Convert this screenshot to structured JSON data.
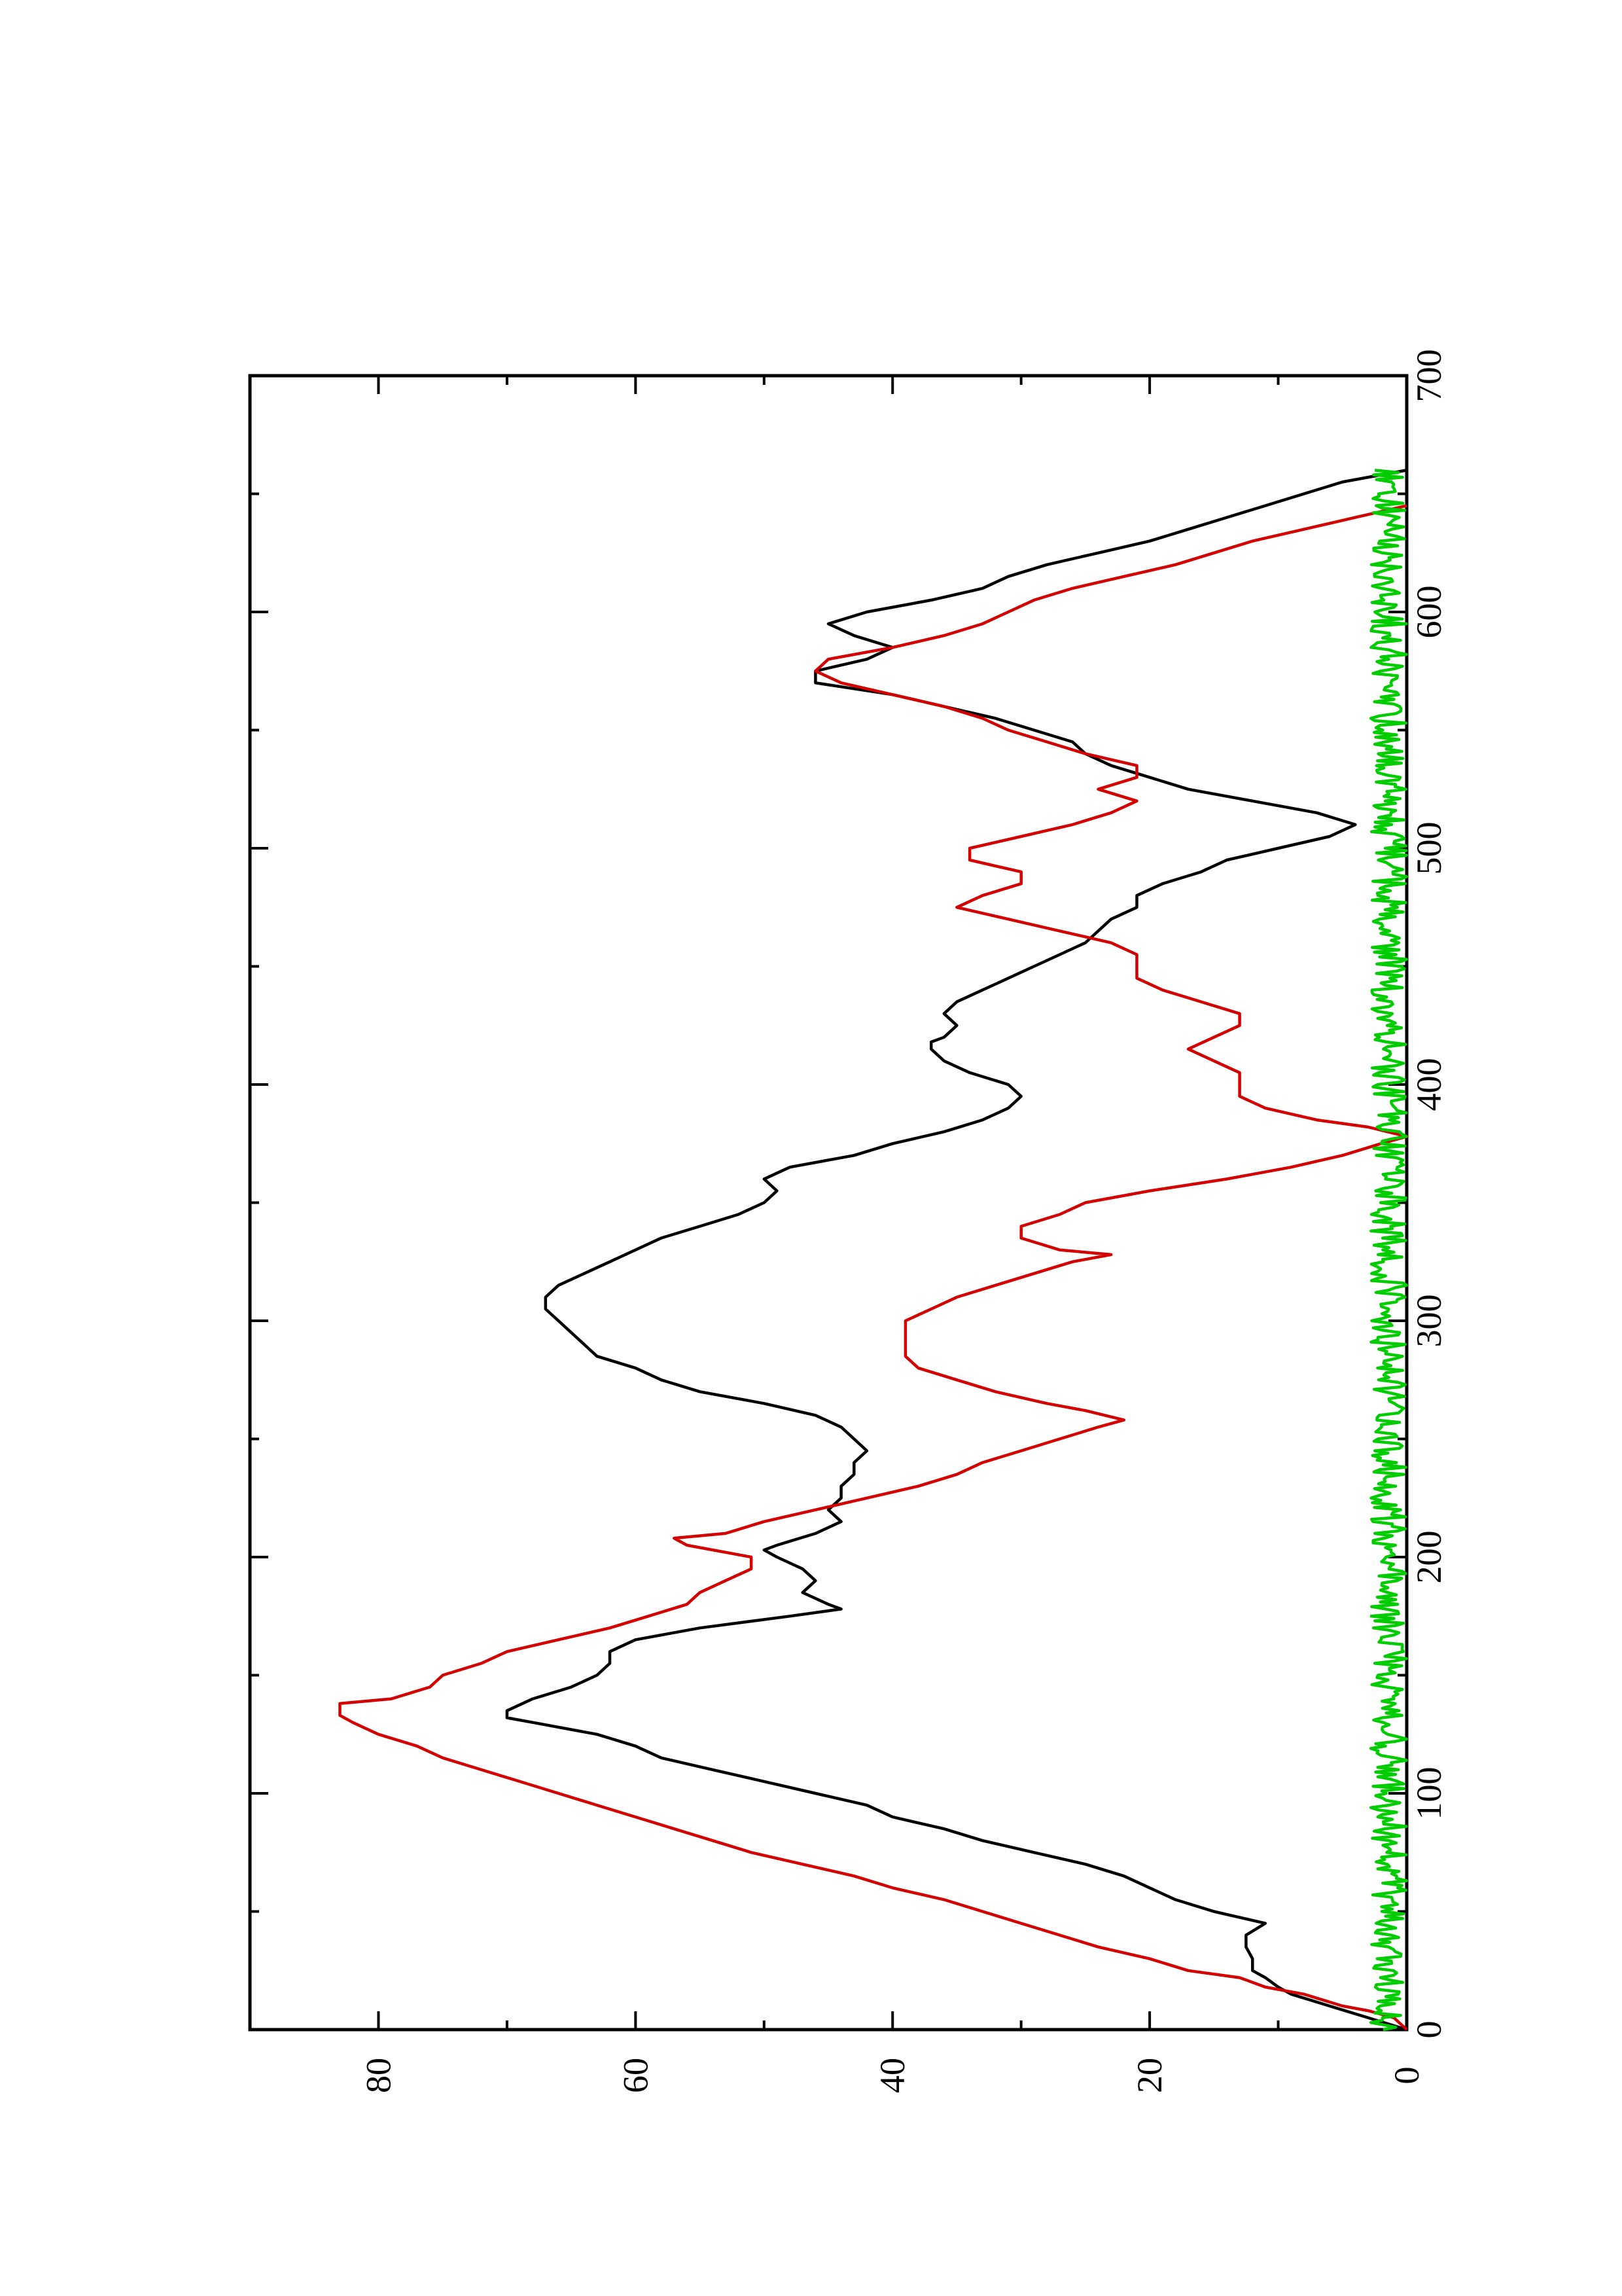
{
  "chart_data": {
    "type": "line",
    "title": "",
    "xlabel": "",
    "ylabel": "",
    "rotated": "90deg-counterclockwise (page is landscape plot printed on portrait page)",
    "xlim": [
      0,
      700
    ],
    "ylim": [
      0,
      90
    ],
    "x_ticks": [
      "0",
      "100",
      "200",
      "300",
      "400",
      "500",
      "600",
      "700"
    ],
    "y_ticks": [
      "0",
      "20",
      "40",
      "60",
      "80"
    ],
    "x_minor_step": 50,
    "y_minor_step": 10,
    "grid": false,
    "series": [
      {
        "color": "#000000",
        "points": [
          [
            0,
            0
          ],
          [
            5,
            3
          ],
          [
            10,
            6
          ],
          [
            15,
            9
          ],
          [
            18,
            10
          ],
          [
            22,
            11
          ],
          [
            25,
            12
          ],
          [
            30,
            12
          ],
          [
            35,
            12.5
          ],
          [
            40,
            12.5
          ],
          [
            45,
            11
          ],
          [
            50,
            15
          ],
          [
            55,
            18
          ],
          [
            60,
            20
          ],
          [
            65,
            22
          ],
          [
            70,
            25
          ],
          [
            75,
            29
          ],
          [
            80,
            33
          ],
          [
            85,
            36
          ],
          [
            90,
            40
          ],
          [
            95,
            42
          ],
          [
            100,
            46
          ],
          [
            105,
            50
          ],
          [
            110,
            54
          ],
          [
            115,
            58
          ],
          [
            120,
            60
          ],
          [
            125,
            63
          ],
          [
            130,
            68
          ],
          [
            132,
            70
          ],
          [
            135,
            70
          ],
          [
            140,
            68
          ],
          [
            145,
            65
          ],
          [
            150,
            63
          ],
          [
            155,
            62
          ],
          [
            160,
            62
          ],
          [
            165,
            60
          ],
          [
            170,
            55
          ],
          [
            175,
            48
          ],
          [
            178,
            44
          ],
          [
            180,
            45
          ],
          [
            185,
            47
          ],
          [
            190,
            46
          ],
          [
            195,
            47
          ],
          [
            200,
            49
          ],
          [
            203,
            50
          ],
          [
            205,
            49
          ],
          [
            210,
            46
          ],
          [
            215,
            44
          ],
          [
            220,
            45
          ],
          [
            225,
            44
          ],
          [
            230,
            44
          ],
          [
            235,
            43
          ],
          [
            240,
            43
          ],
          [
            245,
            42
          ],
          [
            250,
            43
          ],
          [
            255,
            44
          ],
          [
            260,
            46
          ],
          [
            265,
            50
          ],
          [
            270,
            55
          ],
          [
            275,
            58
          ],
          [
            280,
            60
          ],
          [
            285,
            63
          ],
          [
            290,
            64
          ],
          [
            295,
            65
          ],
          [
            300,
            66
          ],
          [
            305,
            67
          ],
          [
            310,
            67
          ],
          [
            315,
            66
          ],
          [
            320,
            64
          ],
          [
            325,
            62
          ],
          [
            330,
            60
          ],
          [
            335,
            58
          ],
          [
            340,
            55
          ],
          [
            345,
            52
          ],
          [
            350,
            50
          ],
          [
            355,
            49
          ],
          [
            360,
            50
          ],
          [
            365,
            48
          ],
          [
            370,
            43
          ],
          [
            375,
            40
          ],
          [
            380,
            36
          ],
          [
            385,
            33
          ],
          [
            390,
            31
          ],
          [
            395,
            30
          ],
          [
            400,
            31
          ],
          [
            405,
            34
          ],
          [
            410,
            36
          ],
          [
            415,
            37
          ],
          [
            418,
            37
          ],
          [
            420,
            36
          ],
          [
            425,
            35
          ],
          [
            430,
            36
          ],
          [
            435,
            35
          ],
          [
            440,
            33
          ],
          [
            445,
            31
          ],
          [
            450,
            29
          ],
          [
            455,
            27
          ],
          [
            460,
            25
          ],
          [
            465,
            24
          ],
          [
            470,
            23
          ],
          [
            475,
            21
          ],
          [
            480,
            21
          ],
          [
            485,
            19
          ],
          [
            490,
            16
          ],
          [
            495,
            14
          ],
          [
            500,
            10
          ],
          [
            505,
            6
          ],
          [
            510,
            4
          ],
          [
            515,
            7
          ],
          [
            520,
            12
          ],
          [
            525,
            17
          ],
          [
            530,
            20
          ],
          [
            535,
            23
          ],
          [
            540,
            25
          ],
          [
            545,
            26
          ],
          [
            550,
            29
          ],
          [
            555,
            32
          ],
          [
            560,
            36
          ],
          [
            565,
            40
          ],
          [
            570,
            46
          ],
          [
            575,
            46
          ],
          [
            580,
            42
          ],
          [
            585,
            40
          ],
          [
            590,
            43
          ],
          [
            595,
            45
          ],
          [
            600,
            42
          ],
          [
            605,
            37
          ],
          [
            610,
            33
          ],
          [
            615,
            31
          ],
          [
            620,
            28
          ],
          [
            625,
            24
          ],
          [
            630,
            20
          ],
          [
            635,
            17
          ],
          [
            640,
            14
          ],
          [
            645,
            11
          ],
          [
            650,
            8
          ],
          [
            655,
            5
          ],
          [
            660,
            0
          ]
        ]
      },
      {
        "color": "#d40000",
        "points": [
          [
            0,
            0
          ],
          [
            5,
            1
          ],
          [
            8,
            3
          ],
          [
            10,
            5
          ],
          [
            15,
            8
          ],
          [
            18,
            11
          ],
          [
            22,
            13
          ],
          [
            25,
            17
          ],
          [
            30,
            20
          ],
          [
            35,
            24
          ],
          [
            40,
            27
          ],
          [
            45,
            30
          ],
          [
            50,
            33
          ],
          [
            55,
            36
          ],
          [
            60,
            40
          ],
          [
            65,
            43
          ],
          [
            70,
            47
          ],
          [
            75,
            51
          ],
          [
            80,
            54
          ],
          [
            85,
            57
          ],
          [
            90,
            60
          ],
          [
            95,
            63
          ],
          [
            100,
            66
          ],
          [
            105,
            69
          ],
          [
            110,
            72
          ],
          [
            115,
            75
          ],
          [
            120,
            77
          ],
          [
            125,
            80
          ],
          [
            130,
            82
          ],
          [
            133,
            83
          ],
          [
            138,
            83
          ],
          [
            140,
            79
          ],
          [
            145,
            76
          ],
          [
            150,
            75
          ],
          [
            155,
            72
          ],
          [
            160,
            70
          ],
          [
            165,
            66
          ],
          [
            170,
            62
          ],
          [
            175,
            59
          ],
          [
            180,
            56
          ],
          [
            185,
            55
          ],
          [
            190,
            53
          ],
          [
            195,
            51
          ],
          [
            200,
            51
          ],
          [
            205,
            56
          ],
          [
            208,
            57
          ],
          [
            210,
            53
          ],
          [
            215,
            50
          ],
          [
            220,
            46
          ],
          [
            225,
            42
          ],
          [
            230,
            38
          ],
          [
            235,
            35
          ],
          [
            240,
            33
          ],
          [
            245,
            30
          ],
          [
            250,
            27
          ],
          [
            255,
            24
          ],
          [
            258,
            22
          ],
          [
            262,
            25
          ],
          [
            265,
            28
          ],
          [
            270,
            32
          ],
          [
            275,
            35
          ],
          [
            280,
            38
          ],
          [
            285,
            39
          ],
          [
            290,
            39
          ],
          [
            295,
            39
          ],
          [
            300,
            39
          ],
          [
            305,
            37
          ],
          [
            310,
            35
          ],
          [
            315,
            32
          ],
          [
            320,
            29
          ],
          [
            325,
            26
          ],
          [
            328,
            23
          ],
          [
            330,
            27
          ],
          [
            335,
            30
          ],
          [
            340,
            30
          ],
          [
            345,
            27
          ],
          [
            350,
            25
          ],
          [
            355,
            20
          ],
          [
            360,
            14
          ],
          [
            365,
            9
          ],
          [
            370,
            5
          ],
          [
            375,
            2
          ],
          [
            378,
            0
          ],
          [
            382,
            3
          ],
          [
            385,
            7
          ],
          [
            390,
            11
          ],
          [
            395,
            13
          ],
          [
            400,
            13
          ],
          [
            405,
            13
          ],
          [
            410,
            15
          ],
          [
            415,
            17
          ],
          [
            420,
            15
          ],
          [
            425,
            13
          ],
          [
            430,
            13
          ],
          [
            435,
            16
          ],
          [
            440,
            19
          ],
          [
            445,
            21
          ],
          [
            450,
            21
          ],
          [
            455,
            21
          ],
          [
            460,
            23
          ],
          [
            465,
            27
          ],
          [
            470,
            31
          ],
          [
            475,
            35
          ],
          [
            480,
            33
          ],
          [
            485,
            30
          ],
          [
            490,
            30
          ],
          [
            495,
            34
          ],
          [
            500,
            34
          ],
          [
            505,
            30
          ],
          [
            510,
            26
          ],
          [
            515,
            23
          ],
          [
            520,
            21
          ],
          [
            525,
            24
          ],
          [
            530,
            21
          ],
          [
            535,
            21
          ],
          [
            540,
            25
          ],
          [
            545,
            28
          ],
          [
            550,
            31
          ],
          [
            555,
            33
          ],
          [
            560,
            36
          ],
          [
            565,
            40
          ],
          [
            570,
            44
          ],
          [
            575,
            46
          ],
          [
            580,
            45
          ],
          [
            585,
            40
          ],
          [
            590,
            36
          ],
          [
            595,
            33
          ],
          [
            600,
            31
          ],
          [
            605,
            29
          ],
          [
            610,
            26
          ],
          [
            615,
            22
          ],
          [
            620,
            18
          ],
          [
            625,
            15
          ],
          [
            630,
            12
          ],
          [
            635,
            8
          ],
          [
            640,
            4
          ],
          [
            645,
            0
          ]
        ]
      },
      {
        "color": "#00cc00",
        "noise": true,
        "x_range": [
          0,
          660
        ],
        "amplitude": [
          0,
          2.8
        ]
      }
    ]
  }
}
